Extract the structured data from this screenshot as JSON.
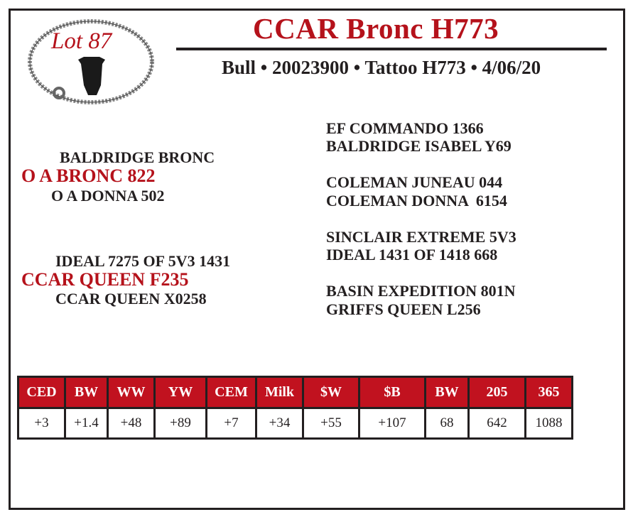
{
  "logo": {
    "text": "Lot 87",
    "icon": "bull-head-in-rope-circle"
  },
  "header": {
    "title": "CCAR Bronc H773",
    "subtitle": "Bull • 20023900 • Tattoo H773 • 4/06/20"
  },
  "pedigree": {
    "sire": {
      "name": "O A BRONC 822",
      "sire": "BALDRIDGE BRONC",
      "dam": "O A DONNA 502",
      "sire_sire": "EF COMMANDO 1366",
      "sire_dam": "BALDRIDGE ISABEL Y69",
      "dam_sire": "COLEMAN JUNEAU 044",
      "dam_dam": "COLEMAN DONNA  6154"
    },
    "dam": {
      "name": "CCAR QUEEN F235",
      "sire": "IDEAL 7275 OF 5V3 1431",
      "dam": "CCAR QUEEN X0258",
      "sire_sire": "SINCLAIR EXTREME 5V3",
      "sire_dam": "IDEAL 1431 OF 1418 668",
      "dam_sire": "BASIN EXPEDITION 801N",
      "dam_dam": "GRIFFS QUEEN L256"
    }
  },
  "epd_table": {
    "headers": [
      "CED",
      "BW",
      "WW",
      "YW",
      "CEM",
      "Milk",
      "$W",
      "$B",
      "BW",
      "205",
      "365"
    ],
    "values": [
      "+3",
      "+1.4",
      "+48",
      "+89",
      "+7",
      "+34",
      "+55",
      "+107",
      "68",
      "642",
      "1088"
    ]
  },
  "colors": {
    "accent": "#b5121b",
    "text": "#231f20"
  }
}
